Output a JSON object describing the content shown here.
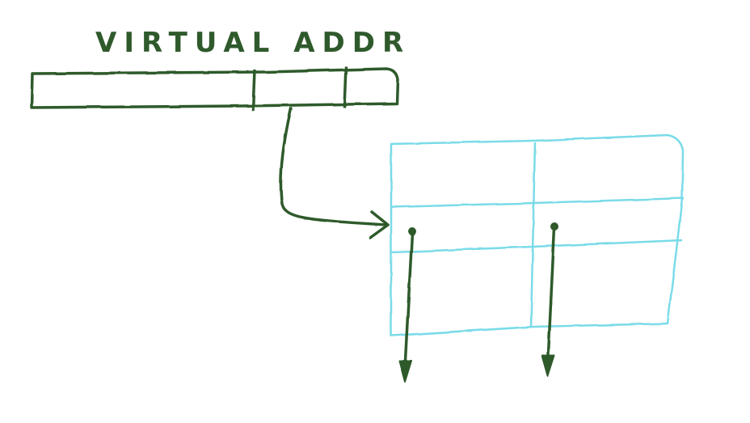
{
  "title": "VIRTUAL ADDR",
  "colors": {
    "green": "#2f5a2c",
    "cyan": "#7adbe8",
    "background": "#ffffff"
  }
}
